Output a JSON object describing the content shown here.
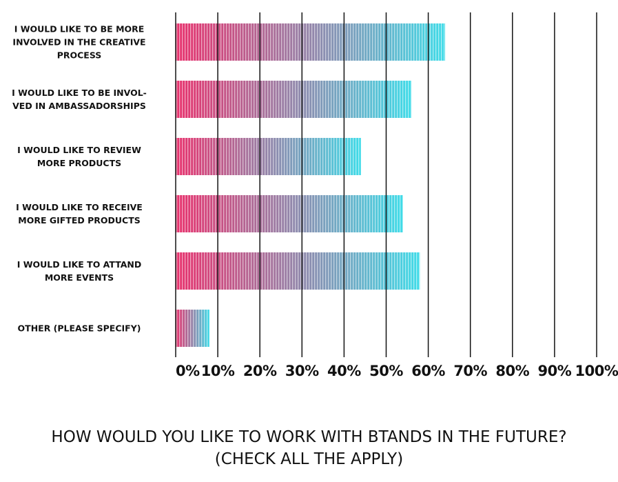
{
  "chart_data": {
    "type": "barh",
    "title": "HOW WOULD YOU LIKE TO WORK WITH BTANDS IN THE FUTURE?\n(CHECK ALL THE APPLY)",
    "categories": [
      "I WOULD LIKE TO BE MORE\nINVOLVED IN THE CREATIVE\nPROCESS",
      "I WOULD LIKE TO BE INVOL-\nVED IN AMBASSADORSHIPS",
      "I WOULD LIKE TO REVIEW\nMORE PRODUCTS",
      "I WOULD LIKE TO RECEIVE\nMORE GIFTED PRODUCTS",
      "I WOULD LIKE TO ATTAND\nMORE EVENTS",
      "OTHER (PLEASE SPECIFY)"
    ],
    "values": [
      64,
      56,
      44,
      54,
      58,
      8
    ],
    "color_start": "#e8306c",
    "color_end": "#3fdbe8",
    "xlim": [
      0,
      100
    ],
    "xticks": [
      {
        "value": 0,
        "label": "0%"
      },
      {
        "value": 10,
        "label": "10%"
      },
      {
        "value": 20,
        "label": "20%"
      },
      {
        "value": 30,
        "label": "30%"
      },
      {
        "value": 40,
        "label": "40%"
      },
      {
        "value": 50,
        "label": "50%"
      },
      {
        "value": 60,
        "label": "60%"
      },
      {
        "value": 70,
        "label": "70%"
      },
      {
        "value": 80,
        "label": "80%"
      },
      {
        "value": 90,
        "label": "90%"
      },
      {
        "value": 100,
        "label": "100%"
      }
    ],
    "grid": true
  }
}
